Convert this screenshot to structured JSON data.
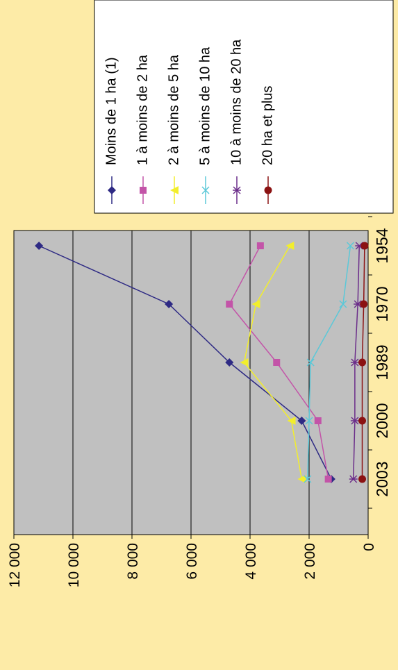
{
  "chart_data": {
    "type": "line",
    "orientation": "rotated-90-ccw",
    "categories": [
      "1954",
      "1970",
      "1989",
      "2000",
      "2003"
    ],
    "ylim": [
      0,
      12000
    ],
    "yticks": [
      0,
      2000,
      4000,
      6000,
      8000,
      10000,
      12000
    ],
    "ytick_labels": [
      "0",
      "2 000",
      "4 000",
      "6 000",
      "8 000",
      "10 000",
      "12 000"
    ],
    "grid": true,
    "legend_position": "top-right",
    "title": "",
    "xlabel": "",
    "ylabel": "",
    "series": [
      {
        "name": "Moins de 1 ha (1)",
        "color": "#2e2a84",
        "marker": "diamond",
        "values": [
          11150,
          6750,
          4700,
          2250,
          1250
        ]
      },
      {
        "name": "1 à moins de 2 ha",
        "color": "#c354a8",
        "marker": "square",
        "values": [
          3650,
          4700,
          3100,
          1700,
          1350
        ]
      },
      {
        "name": "2 à moins de 5 ha",
        "color": "#f2ee2c",
        "marker": "triangle",
        "values": [
          2650,
          3800,
          4200,
          2600,
          2250
        ]
      },
      {
        "name": "5 à moins de 10 ha",
        "color": "#5bc8d8",
        "marker": "x",
        "values": [
          600,
          850,
          1950,
          2000,
          2050
        ]
      },
      {
        "name": "10 à moins de 20 ha",
        "color": "#6b2d8a",
        "marker": "asterisk",
        "values": [
          300,
          350,
          450,
          450,
          500
        ]
      },
      {
        "name": "20 ha et plus",
        "color": "#8b1212",
        "marker": "circle",
        "values": [
          120,
          150,
          200,
          200,
          200
        ]
      }
    ]
  }
}
